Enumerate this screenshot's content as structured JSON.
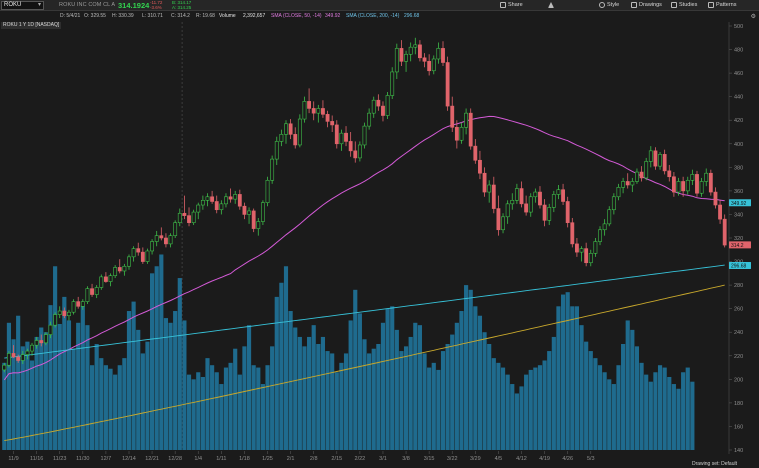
{
  "topbar": {
    "symbol": "ROKU",
    "company": "ROKU INC COM CL A",
    "last_price": "314.1924",
    "change_line1": "-11.72",
    "change_line2": "-3.6%",
    "bid_line": "B: 314.17",
    "ask_line": "A: 314.25",
    "buttons": [
      "Share",
      "Style",
      "Drawings",
      "Studies",
      "Patterns"
    ]
  },
  "infobar": {
    "date": "D: 5/4/21",
    "open": "O: 329.55",
    "high": "H: 330.39",
    "low": "L: 310.71",
    "close": "C: 314.2",
    "range": "R: 19.68",
    "volume_label": "Volume",
    "volume_value": "2,392,657",
    "sma_label": "SMA (CLOSE, 50, -14)",
    "sma_value": "349.92",
    "sma_color": "#e07be0",
    "sma200_label": "SMA (CLOSE, 200, -14)",
    "sma200_value": "296.68",
    "sma200_color": "#6fc3e8"
  },
  "study_label": "ROKU 1 Y 1D [NASDAQ]",
  "footer": "Drawing set: Default",
  "colors": {
    "up": "#3fbf4a",
    "down": "#e0646b",
    "volume": "#1f6b8e",
    "sma50": "#d35ad6",
    "sma200_price": "#37c2d8",
    "volume_avg": "#c8a82c"
  },
  "chart_data": {
    "type": "candlestick",
    "x_tick_labels": [
      "11/9",
      "11/16",
      "11/23",
      "11/30",
      "12/7",
      "12/14",
      "12/21",
      "12/28",
      "1/4",
      "1/11",
      "1/18",
      "1/25",
      "2/1",
      "2/8",
      "2/15",
      "2/22",
      "3/1",
      "3/8",
      "3/15",
      "3/22",
      "3/29",
      "4/5",
      "4/12",
      "4/19",
      "4/26",
      "5/3"
    ],
    "y_tick_labels": [
      "140",
      "160",
      "180",
      "200",
      "220",
      "240",
      "260",
      "280",
      "300",
      "320",
      "340",
      "360",
      "380",
      "400",
      "420",
      "440",
      "460",
      "480",
      "500"
    ],
    "ylim": [
      140,
      500
    ],
    "price_badges": [
      {
        "label": "349.92",
        "value": 349.92,
        "color": "#37c2d8"
      },
      {
        "label": "314.2",
        "value": 314.2,
        "color": "#e0646b"
      },
      {
        "label": "296.68",
        "value": 296.68,
        "color": "#37c2d8"
      }
    ],
    "candles": [
      [
        208,
        214,
        206,
        212
      ],
      [
        212,
        224,
        210,
        222
      ],
      [
        222,
        229,
        218,
        219
      ],
      [
        219,
        221,
        214,
        216
      ],
      [
        216,
        224,
        213,
        221
      ],
      [
        221,
        226,
        217,
        224
      ],
      [
        224,
        231,
        220,
        229
      ],
      [
        229,
        236,
        226,
        233
      ],
      [
        233,
        238,
        228,
        231
      ],
      [
        231,
        240,
        229,
        238
      ],
      [
        238,
        249,
        235,
        246
      ],
      [
        246,
        257,
        244,
        255
      ],
      [
        255,
        262,
        252,
        258
      ],
      [
        258,
        261,
        252,
        254
      ],
      [
        254,
        259,
        250,
        257
      ],
      [
        257,
        268,
        255,
        266
      ],
      [
        266,
        270,
        260,
        262
      ],
      [
        262,
        268,
        259,
        266
      ],
      [
        266,
        279,
        264,
        277
      ],
      [
        277,
        281,
        270,
        272
      ],
      [
        272,
        280,
        269,
        278
      ],
      [
        278,
        289,
        276,
        287
      ],
      [
        287,
        291,
        282,
        283
      ],
      [
        283,
        290,
        279,
        288
      ],
      [
        288,
        297,
        286,
        295
      ],
      [
        295,
        302,
        290,
        292
      ],
      [
        292,
        298,
        288,
        296
      ],
      [
        296,
        306,
        293,
        304
      ],
      [
        304,
        313,
        300,
        311
      ],
      [
        311,
        316,
        305,
        308
      ],
      [
        308,
        312,
        298,
        300
      ],
      [
        300,
        311,
        298,
        309
      ],
      [
        309,
        319,
        306,
        317
      ],
      [
        317,
        326,
        313,
        322
      ],
      [
        322,
        329,
        318,
        320
      ],
      [
        320,
        324,
        312,
        315
      ],
      [
        315,
        324,
        312,
        322
      ],
      [
        322,
        335,
        320,
        333
      ],
      [
        333,
        345,
        330,
        341
      ],
      [
        341,
        356,
        336,
        339
      ],
      [
        339,
        346,
        330,
        333
      ],
      [
        333,
        344,
        331,
        342
      ],
      [
        342,
        350,
        336,
        348
      ],
      [
        348,
        356,
        344,
        352
      ],
      [
        352,
        358,
        347,
        355
      ],
      [
        355,
        360,
        349,
        351
      ],
      [
        351,
        356,
        341,
        344
      ],
      [
        344,
        352,
        340,
        349
      ],
      [
        349,
        358,
        346,
        355
      ],
      [
        355,
        362,
        350,
        353
      ],
      [
        353,
        360,
        349,
        357
      ],
      [
        357,
        361,
        344,
        347
      ],
      [
        347,
        350,
        336,
        340
      ],
      [
        340,
        346,
        332,
        343
      ],
      [
        343,
        345,
        325,
        328
      ],
      [
        328,
        337,
        322,
        334
      ],
      [
        334,
        352,
        331,
        350
      ],
      [
        350,
        372,
        347,
        369
      ],
      [
        369,
        390,
        366,
        387
      ],
      [
        387,
        406,
        382,
        402
      ],
      [
        402,
        412,
        398,
        408
      ],
      [
        408,
        420,
        400,
        417
      ],
      [
        417,
        421,
        404,
        408
      ],
      [
        408,
        414,
        396,
        399
      ],
      [
        399,
        425,
        397,
        421
      ],
      [
        421,
        440,
        418,
        436
      ],
      [
        436,
        447,
        426,
        430
      ],
      [
        430,
        436,
        420,
        426
      ],
      [
        426,
        433,
        418,
        430
      ],
      [
        430,
        437,
        422,
        425
      ],
      [
        425,
        428,
        414,
        419
      ],
      [
        419,
        424,
        410,
        416
      ],
      [
        416,
        420,
        396,
        400
      ],
      [
        400,
        412,
        394,
        409
      ],
      [
        409,
        415,
        398,
        402
      ],
      [
        402,
        410,
        389,
        394
      ],
      [
        394,
        402,
        384,
        388
      ],
      [
        388,
        402,
        385,
        399
      ],
      [
        399,
        418,
        396,
        415
      ],
      [
        415,
        430,
        412,
        426
      ],
      [
        426,
        440,
        422,
        437
      ],
      [
        437,
        442,
        428,
        432
      ],
      [
        432,
        436,
        419,
        424
      ],
      [
        424,
        444,
        421,
        441
      ],
      [
        441,
        465,
        438,
        461
      ],
      [
        461,
        485,
        455,
        481
      ],
      [
        481,
        488,
        466,
        470
      ],
      [
        470,
        479,
        461,
        476
      ],
      [
        476,
        486,
        470,
        482
      ],
      [
        482,
        490,
        476,
        484
      ],
      [
        484,
        488,
        470,
        473
      ],
      [
        473,
        477,
        465,
        470
      ],
      [
        470,
        476,
        458,
        462
      ],
      [
        462,
        475,
        459,
        472
      ],
      [
        472,
        486,
        468,
        481
      ],
      [
        481,
        487,
        466,
        469
      ],
      [
        469,
        474,
        428,
        432
      ],
      [
        432,
        440,
        410,
        414
      ],
      [
        414,
        420,
        396,
        403
      ],
      [
        403,
        418,
        400,
        414
      ],
      [
        414,
        430,
        408,
        426
      ],
      [
        426,
        430,
        395,
        398
      ],
      [
        398,
        404,
        383,
        386
      ],
      [
        386,
        394,
        370,
        375
      ],
      [
        375,
        380,
        355,
        359
      ],
      [
        359,
        369,
        350,
        365
      ],
      [
        365,
        372,
        341,
        345
      ],
      [
        345,
        356,
        322,
        327
      ],
      [
        327,
        341,
        324,
        338
      ],
      [
        338,
        352,
        332,
        349
      ],
      [
        349,
        358,
        344,
        352
      ],
      [
        352,
        366,
        349,
        362
      ],
      [
        362,
        368,
        346,
        349
      ],
      [
        349,
        356,
        339,
        342
      ],
      [
        342,
        358,
        338,
        355
      ],
      [
        355,
        362,
        350,
        359
      ],
      [
        359,
        364,
        345,
        348
      ],
      [
        348,
        353,
        330,
        335
      ],
      [
        335,
        349,
        331,
        346
      ],
      [
        346,
        360,
        342,
        357
      ],
      [
        357,
        365,
        353,
        361
      ],
      [
        361,
        366,
        348,
        351
      ],
      [
        351,
        355,
        329,
        333
      ],
      [
        333,
        337,
        312,
        315
      ],
      [
        315,
        320,
        304,
        308
      ],
      [
        308,
        313,
        300,
        311
      ],
      [
        311,
        316,
        296,
        299
      ],
      [
        299,
        310,
        296,
        307
      ],
      [
        307,
        320,
        304,
        317
      ],
      [
        317,
        330,
        314,
        327
      ],
      [
        327,
        336,
        322,
        332
      ],
      [
        332,
        347,
        330,
        344
      ],
      [
        344,
        358,
        340,
        355
      ],
      [
        355,
        366,
        352,
        363
      ],
      [
        363,
        371,
        358,
        368
      ],
      [
        368,
        375,
        362,
        365
      ],
      [
        365,
        371,
        359,
        368
      ],
      [
        368,
        379,
        366,
        376
      ],
      [
        376,
        381,
        368,
        371
      ],
      [
        371,
        388,
        369,
        385
      ],
      [
        385,
        398,
        380,
        394
      ],
      [
        394,
        397,
        378,
        381
      ],
      [
        381,
        393,
        378,
        391
      ],
      [
        391,
        395,
        374,
        377
      ],
      [
        377,
        382,
        368,
        372
      ],
      [
        372,
        376,
        355,
        359
      ],
      [
        359,
        371,
        356,
        368
      ],
      [
        368,
        372,
        355,
        360
      ],
      [
        360,
        372,
        357,
        369
      ],
      [
        369,
        378,
        365,
        374
      ],
      [
        374,
        377,
        355,
        358
      ],
      [
        358,
        371,
        355,
        368
      ],
      [
        368,
        379,
        364,
        375
      ],
      [
        375,
        378,
        356,
        359
      ],
      [
        359,
        363,
        345,
        348
      ],
      [
        348,
        352,
        332,
        336
      ],
      [
        336,
        340,
        312,
        314
      ]
    ],
    "volumes": [
      214,
      248,
      234,
      254,
      228,
      232,
      216,
      236,
      244,
      240,
      263,
      296,
      247,
      270,
      250,
      226,
      248,
      262,
      246,
      212,
      230,
      218,
      212,
      209,
      204,
      212,
      218,
      258,
      266,
      242,
      222,
      232,
      290,
      296,
      306,
      252,
      248,
      258,
      286,
      250,
      204,
      200,
      206,
      202,
      218,
      212,
      206,
      196,
      210,
      214,
      226,
      204,
      228,
      246,
      212,
      210,
      196,
      212,
      228,
      270,
      282,
      296,
      258,
      244,
      236,
      228,
      236,
      246,
      230,
      236,
      224,
      222,
      206,
      214,
      222,
      250,
      276,
      256,
      234,
      222,
      226,
      230,
      248,
      260,
      262,
      242,
      224,
      228,
      236,
      248,
      246,
      222,
      210,
      214,
      208,
      224,
      230,
      238,
      248,
      258,
      280,
      276,
      262,
      254,
      240,
      230,
      218,
      214,
      210,
      204,
      196,
      188,
      194,
      204,
      208,
      210,
      212,
      216,
      224,
      236,
      262,
      272,
      274,
      262,
      262,
      246,
      232,
      224,
      218,
      212,
      206,
      200,
      196,
      212,
      230,
      250,
      242,
      228,
      214,
      204,
      198,
      206,
      212,
      210,
      202,
      196,
      192,
      206,
      210,
      198
    ]
  }
}
